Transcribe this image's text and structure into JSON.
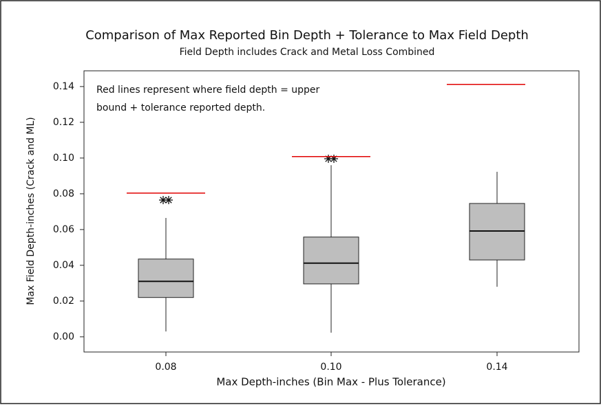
{
  "chart_data": {
    "type": "box",
    "title": "Comparison of Max Reported Bin Depth + Tolerance to Max Field Depth",
    "subtitle": "Field Depth includes Crack and Metal Loss Combined",
    "x_label": "Max Depth-inches (Bin Max - Plus Tolerance)",
    "y_label": "Max Field Depth-inches (Crack and ML)",
    "annotation": [
      "Red lines represent where field depth = upper",
      "bound + tolerance reported depth."
    ],
    "categories": [
      "0.08",
      "0.10",
      "0.14"
    ],
    "boxes": [
      {
        "whisker_low": 0.003,
        "q1": 0.022,
        "median": 0.031,
        "q3": 0.0435,
        "whisker_high": 0.0665,
        "outliers": [
          0.0765,
          0.0765
        ],
        "reference": 0.0804
      },
      {
        "whisker_low": 0.0023,
        "q1": 0.0296,
        "median": 0.0412,
        "q3": 0.0558,
        "whisker_high": 0.096,
        "outliers": [
          0.0996,
          0.0996
        ],
        "reference": 0.1008
      },
      {
        "whisker_low": 0.028,
        "q1": 0.043,
        "median": 0.0592,
        "q3": 0.0746,
        "whisker_high": 0.0923,
        "outliers": [],
        "reference": 0.1412
      }
    ],
    "box_color": "#bebebe",
    "reference_color": "#e00000",
    "ylim": [
      -0.0085,
      0.1488
    ],
    "yticks": [
      {
        "value": 0,
        "label": "0.00"
      },
      0.02,
      0.04,
      0.06,
      0.08,
      {
        "value": 0.1,
        "label": "0.10"
      },
      0.12,
      0.14
    ]
  }
}
